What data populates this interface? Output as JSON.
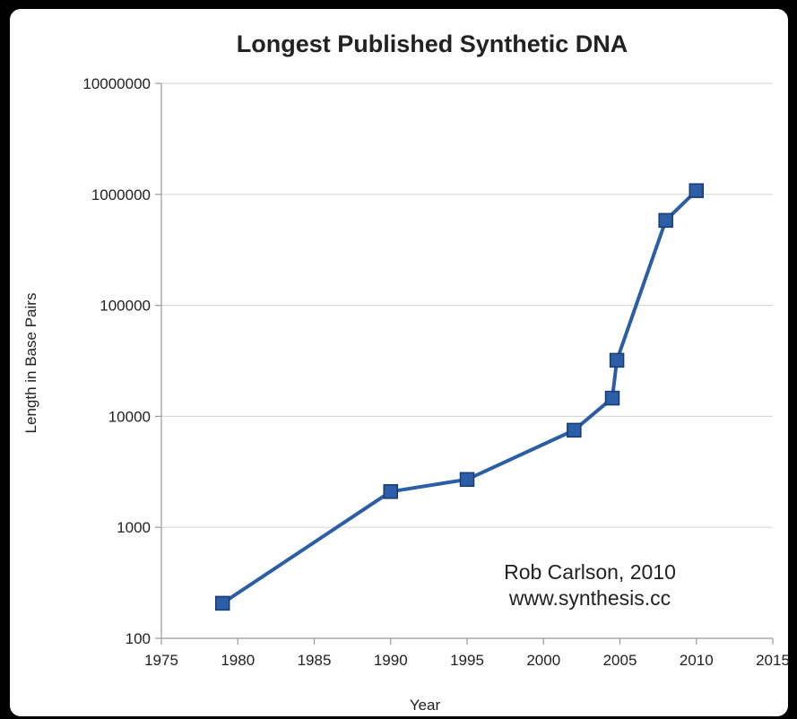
{
  "chart_data": {
    "type": "line",
    "title": "Longest Published Synthetic DNA",
    "xlabel": "Year",
    "ylabel": "Length in Base Pairs",
    "x_scale": "linear",
    "y_scale": "log",
    "xlim": [
      1975,
      2015
    ],
    "ylim": [
      100,
      10000000
    ],
    "x_ticks": [
      "1975",
      "1980",
      "1985",
      "1990",
      "1995",
      "2000",
      "2005",
      "2010",
      "2015"
    ],
    "y_ticks": [
      "100",
      "1000",
      "10000",
      "100000",
      "1000000",
      "10000000"
    ],
    "grid": "horizontal",
    "legend": "none",
    "series": [
      {
        "color": "#2b5ea6",
        "marker": "square",
        "x": [
          1979,
          1990,
          1995,
          2002,
          2004.5,
          2004.8,
          2008,
          2010
        ],
        "y": [
          207,
          2100,
          2700,
          7500,
          14600,
          32000,
          583000,
          1080000
        ]
      }
    ],
    "annotations": [
      "Rob Carlson, 2010",
      "www.synthesis.cc"
    ]
  }
}
